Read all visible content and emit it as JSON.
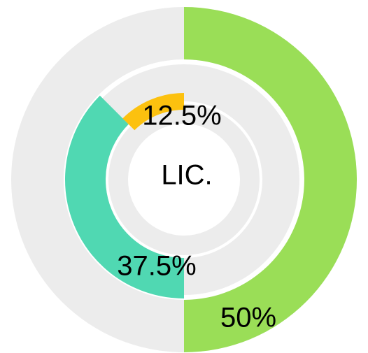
{
  "chart_data": {
    "type": "donut",
    "center_label": "LIC.",
    "values": [
      50,
      37.5,
      12.5
    ],
    "value_labels": [
      "50%",
      "37.5%",
      "12.5%"
    ],
    "colors": [
      "#9ade57",
      "#50d8b2",
      "#fcc10f"
    ],
    "track_color": "#ececec"
  }
}
